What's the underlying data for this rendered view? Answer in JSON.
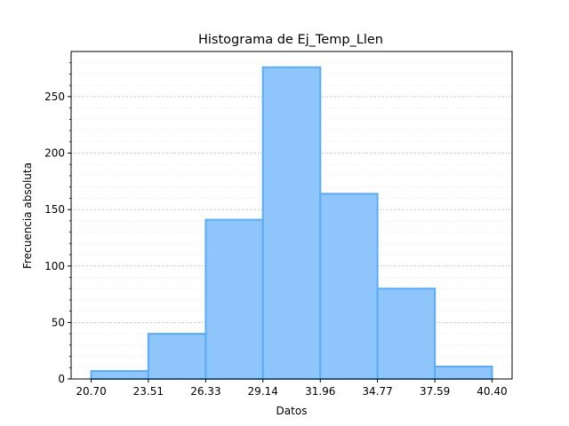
{
  "chart_data": {
    "type": "histogram",
    "title": "Histograma de Ej_Temp_Llen",
    "xlabel": "Datos",
    "ylabel": "Frecuencia absoluta",
    "bin_edges": [
      20.7,
      23.51,
      26.33,
      29.14,
      31.96,
      34.77,
      37.59,
      40.4
    ],
    "x_tick_labels": [
      "20.70",
      "23.51",
      "26.33",
      "29.14",
      "31.96",
      "34.77",
      "37.59",
      "40.40"
    ],
    "values": [
      7,
      40,
      141,
      276,
      164,
      80,
      11
    ],
    "ylim": [
      0,
      290
    ],
    "y_ticks": [
      0,
      50,
      100,
      150,
      200,
      250
    ],
    "grid": {
      "major_y": true,
      "minor_y": true,
      "style": "dotted"
    },
    "colors": {
      "bar_fill": "#8ec5fb",
      "bar_edge": "#5aabf8",
      "grid": "#999999",
      "minor_grid": "#dddddd"
    }
  }
}
